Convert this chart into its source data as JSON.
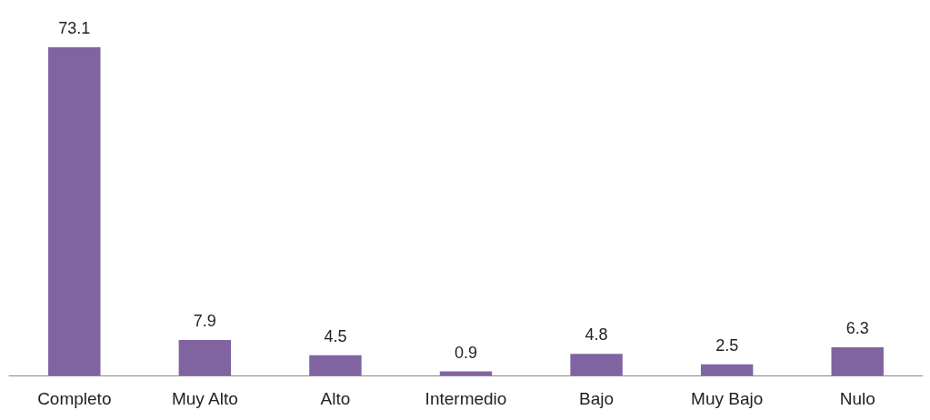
{
  "chart_data": {
    "type": "bar",
    "categories": [
      "Completo",
      "Muy Alto",
      "Alto",
      "Intermedio",
      "Bajo",
      "Muy Bajo",
      "Nulo"
    ],
    "values": [
      73.1,
      7.9,
      4.5,
      0.9,
      4.8,
      2.5,
      6.3
    ],
    "color": "#8064a2",
    "data_labels": true
  }
}
